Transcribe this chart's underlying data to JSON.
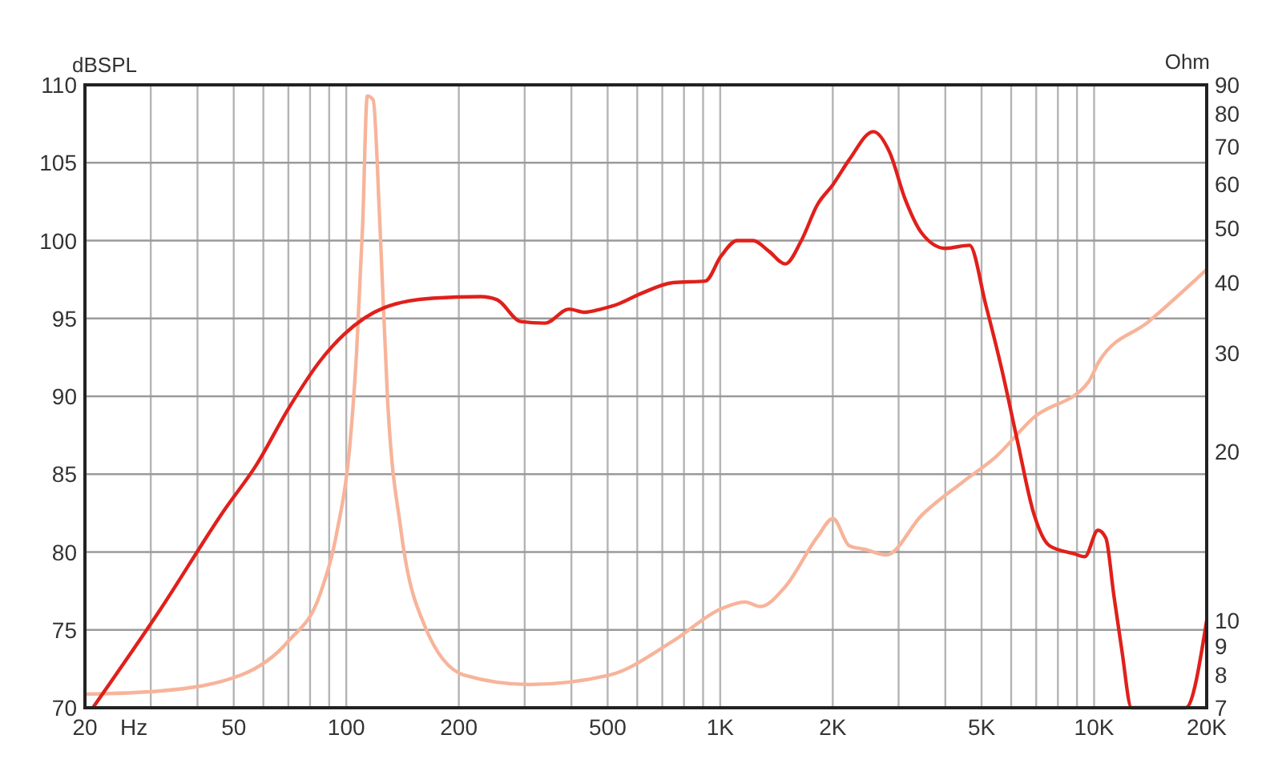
{
  "chart_data": {
    "type": "line",
    "xlabel": "Hz",
    "ylabel": "Ohm",
    "y2label": "dBSPL",
    "log": "xy",
    "grid": true,
    "xlim": [
      20,
      20000
    ],
    "ylim": [
      7,
      90
    ],
    "y2lim": [
      70,
      110
    ],
    "xticks": [
      20,
      {
        "value": 30,
        "label": null
      },
      {
        "value": 40,
        "label": null
      },
      50,
      {
        "value": 60,
        "label": null
      },
      {
        "value": 70,
        "label": null
      },
      {
        "value": 80,
        "label": null
      },
      {
        "value": 90,
        "label": null
      },
      100,
      200,
      {
        "value": 300,
        "label": null
      },
      {
        "value": 400,
        "label": null
      },
      500,
      {
        "value": 600,
        "label": null
      },
      {
        "value": 700,
        "label": null
      },
      {
        "value": 800,
        "label": null
      },
      {
        "value": 900,
        "label": null
      },
      {
        "value": 1000,
        "label": "1K"
      },
      {
        "value": 2000,
        "label": "2K"
      },
      {
        "value": 3000,
        "label": null
      },
      {
        "value": 4000,
        "label": null
      },
      {
        "value": 5000,
        "label": "5K"
      },
      {
        "value": 6000,
        "label": null
      },
      {
        "value": 7000,
        "label": null
      },
      {
        "value": 8000,
        "label": null
      },
      {
        "value": 9000,
        "label": null
      },
      {
        "value": 10000,
        "label": "10K"
      },
      {
        "value": 20000,
        "label": "20K"
      }
    ],
    "yticks": [
      7,
      8,
      9,
      10,
      20,
      30,
      40,
      50,
      60,
      70,
      80,
      90
    ],
    "y2ticks": [
      70,
      75,
      80,
      85,
      90,
      95,
      100,
      105,
      110
    ],
    "series": [
      {
        "color": "#f7b49a",
        "x": [
          20,
          31.8,
          52.2,
          70,
          85.3,
          94.6,
          102,
          106.5,
          110.6,
          113.8,
          118,
          123,
          129,
          140,
          162,
          207,
          308,
          504,
          748,
          1005,
          1165,
          1280,
          1493,
          1819,
          2003,
          2214,
          2440,
          2780,
          3454,
          4470,
          5420,
          6890,
          9650,
          10320,
          14000,
          20000
        ],
        "values": [
          7.4,
          7.5,
          8.0,
          9.2,
          11.2,
          14.5,
          20.2,
          29.9,
          50.7,
          86,
          84.6,
          50.7,
          24.6,
          14.5,
          9.8,
          8.0,
          7.7,
          8.0,
          9.2,
          10.5,
          10.8,
          10.6,
          11.5,
          14.1,
          15.2,
          13.6,
          13.4,
          13.1,
          15.4,
          17.7,
          19.5,
          23.0,
          26.6,
          29.0,
          34.1,
          42.2
        ]
      },
      {
        "color": "#e0201b",
        "axis": "y2",
        "x": [
          21,
          31.8,
          47.2,
          57.5,
          70,
          85.3,
          98.9,
          126.6,
          170,
          229,
          253,
          293,
          340,
          394,
          435,
          480,
          530,
          614,
          748,
          912,
          1005,
          1110,
          1225,
          1352,
          1493,
          1648,
          1819,
          2003,
          2214,
          2570,
          2835,
          3130,
          3454,
          4000,
          4643,
          5128,
          5654,
          6240,
          6890,
          7603,
          8813,
          9446,
          10240,
          10750,
          11280,
          11860,
          12590,
          17580,
          20000
        ],
        "values": [
          70,
          76.3,
          82.7,
          85.6,
          89.2,
          92.3,
          94.0,
          95.7,
          96.3,
          96.4,
          96.2,
          94.8,
          94.7,
          95.6,
          95.4,
          95.6,
          95.9,
          96.6,
          97.3,
          97.4,
          99.0,
          100.0,
          100.0,
          99.3,
          98.5,
          100.0,
          102.3,
          103.6,
          105.2,
          107.0,
          105.7,
          102.6,
          100.5,
          99.5,
          99.7,
          95.9,
          91.8,
          87.1,
          82.5,
          80.4,
          79.9,
          79.7,
          81.4,
          80.9,
          77.3,
          73.7,
          70,
          70,
          75.6
        ]
      }
    ]
  }
}
